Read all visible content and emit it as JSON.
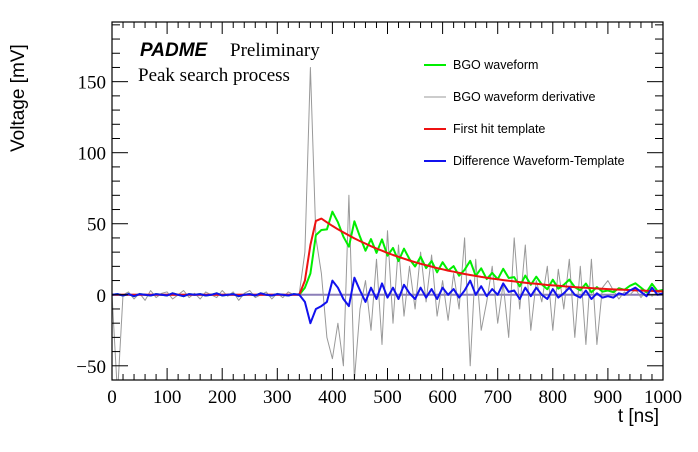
{
  "chart_data": {
    "type": "line",
    "title": "",
    "annotations": {
      "brand": "PADME",
      "status": "Preliminary",
      "subtitle": "Peak search process"
    },
    "xlabel": "t [ns]",
    "ylabel": "Voltage [mV]",
    "xlim": [
      0,
      1000
    ],
    "ylim": [
      -60,
      192
    ],
    "xticks": [
      0,
      100,
      200,
      300,
      400,
      500,
      600,
      700,
      800,
      900,
      1000
    ],
    "yticks": [
      -50,
      0,
      50,
      100,
      150
    ],
    "grid": false,
    "legend_position": "top-right",
    "baseline": 0,
    "colors": {
      "baseline": "#8c7fb8"
    },
    "x": [
      0,
      10,
      20,
      30,
      40,
      50,
      60,
      70,
      80,
      90,
      100,
      110,
      120,
      130,
      140,
      150,
      160,
      170,
      180,
      190,
      200,
      210,
      220,
      230,
      240,
      250,
      260,
      270,
      280,
      290,
      300,
      310,
      320,
      330,
      340,
      350,
      360,
      370,
      380,
      390,
      400,
      410,
      420,
      430,
      440,
      450,
      460,
      470,
      480,
      490,
      500,
      510,
      520,
      530,
      540,
      550,
      560,
      570,
      580,
      590,
      600,
      610,
      620,
      630,
      640,
      650,
      660,
      670,
      680,
      690,
      700,
      710,
      720,
      730,
      740,
      750,
      760,
      770,
      780,
      790,
      800,
      810,
      820,
      830,
      840,
      850,
      860,
      870,
      880,
      890,
      900,
      910,
      920,
      930,
      940,
      950,
      960,
      970,
      980,
      990,
      1000
    ],
    "series": [
      {
        "name": "BGO waveform derivative",
        "color": "#999999",
        "width": 1,
        "values": [
          0,
          -70,
          0,
          2,
          -3,
          1,
          -4,
          3,
          -2,
          1,
          2,
          -3,
          0,
          3,
          -2,
          1,
          -3,
          2,
          0,
          -2,
          3,
          -1,
          2,
          -4,
          1,
          3,
          -2,
          0,
          2,
          -3,
          1,
          -2,
          2,
          0,
          1,
          30,
          160,
          40,
          15,
          -30,
          -45,
          -20,
          -50,
          70,
          -60,
          -10,
          10,
          -25,
          25,
          -35,
          45,
          -20,
          35,
          -15,
          20,
          -10,
          30,
          -5,
          28,
          -15,
          10,
          -18,
          15,
          -10,
          40,
          -50,
          25,
          -25,
          -5,
          20,
          -20,
          8,
          -30,
          40,
          -10,
          35,
          -25,
          10,
          -5,
          20,
          -25,
          18,
          -10,
          25,
          -30,
          20,
          -35,
          25,
          -35,
          5,
          10,
          3,
          -3,
          2,
          0,
          4,
          -2,
          3,
          -1,
          2,
          0
        ]
      },
      {
        "name": "BGO waveform",
        "color": "#00ee00",
        "width": 2,
        "values": [
          0,
          0.5,
          -0.5,
          0.5,
          -1,
          0.5,
          0,
          -0.5,
          0.5,
          0,
          -0.5,
          1,
          0,
          -1,
          0.5,
          0,
          0.5,
          -0.5,
          0,
          1,
          -0.5,
          0,
          0.5,
          -1,
          0,
          0.5,
          -0.5,
          1,
          0,
          -0.5,
          0.5,
          0,
          -0.5,
          0.5,
          0,
          5,
          15,
          42,
          45.6,
          46,
          58.5,
          51.1,
          40.9,
          33.8,
          51.7,
          40.8,
          31,
          39.2,
          29.5,
          39,
          27.5,
          33,
          23.7,
          32.4,
          25.1,
          19.9,
          26.8,
          18.8,
          23.8,
          15.8,
          22.9,
          17,
          20.2,
          13.4,
          17.6,
          23.9,
          13.3,
          18.6,
          11,
          15.4,
          10.9,
          18.3,
          11.8,
          12.4,
          5.9,
          13.5,
          7,
          12.7,
          7.3,
          3.9,
          10.6,
          4.3,
          7,
          10.7,
          5.4,
          3.1,
          7.9,
          1.7,
          5.4,
          2.2,
          3,
          1.8,
          4.6,
          3.5,
          6.3,
          8.1,
          5,
          1.8,
          7.7,
          2.6,
          3.4
        ]
      },
      {
        "name": "First hit template",
        "color": "#ee1111",
        "width": 2,
        "values": [
          0,
          0,
          0,
          0,
          0,
          0,
          0,
          0,
          0,
          0,
          0,
          0,
          0,
          0,
          0,
          0,
          0,
          0,
          0,
          0,
          0,
          0,
          0,
          0,
          0,
          0,
          0,
          0,
          0,
          0,
          0,
          0,
          0,
          0,
          0,
          10,
          35,
          52,
          53.6,
          51,
          48.5,
          46.1,
          43.9,
          41.8,
          39.7,
          37.8,
          36,
          34.2,
          32.5,
          31,
          29.5,
          28,
          26.7,
          25.4,
          24.1,
          22.9,
          21.8,
          20.8,
          19.8,
          18.8,
          17.9,
          17,
          16.2,
          15.4,
          14.6,
          13.9,
          13.3,
          12.6,
          12,
          11.4,
          10.9,
          10.3,
          9.8,
          9.4,
          8.9,
          8.5,
          8,
          7.7,
          7.3,
          6.9,
          6.6,
          6.3,
          6,
          5.7,
          5.4,
          5.1,
          4.9,
          4.7,
          4.4,
          4.2,
          4,
          3.8,
          3.6,
          3.5,
          3.3,
          3.1,
          3,
          2.8,
          2.7,
          2.6,
          2.4
        ]
      },
      {
        "name": "Difference Waveform-Template",
        "color": "#1111ee",
        "width": 2,
        "values": [
          0,
          0.5,
          -0.5,
          0.5,
          -1,
          0.5,
          0,
          -0.5,
          0.5,
          0,
          -0.5,
          1,
          0,
          -1,
          0.5,
          0,
          0.5,
          -0.5,
          0,
          1,
          -0.5,
          0,
          0.5,
          -1,
          0,
          0.5,
          -0.5,
          1,
          0,
          -0.5,
          0.5,
          0,
          -0.5,
          0.5,
          0,
          -5,
          -20,
          -10,
          -8,
          -5,
          10,
          5,
          -3,
          -8,
          12,
          3,
          -5,
          5,
          -3,
          8,
          -2,
          5,
          -3,
          7,
          1,
          -3,
          5,
          -2,
          4,
          -3,
          5,
          0,
          4,
          -2,
          3,
          10,
          0,
          6,
          -1,
          4,
          0,
          8,
          2,
          3,
          -3,
          5,
          -1,
          5,
          0,
          -3,
          4,
          -2,
          1,
          5,
          0,
          -2,
          3,
          -3,
          1,
          -2,
          -1,
          -2,
          1,
          0,
          3,
          5,
          2,
          -1,
          5,
          0,
          1
        ]
      }
    ],
    "legend": [
      "BGO waveform",
      "BGO waveform derivative",
      "First hit template",
      "Difference Waveform-Template"
    ]
  }
}
